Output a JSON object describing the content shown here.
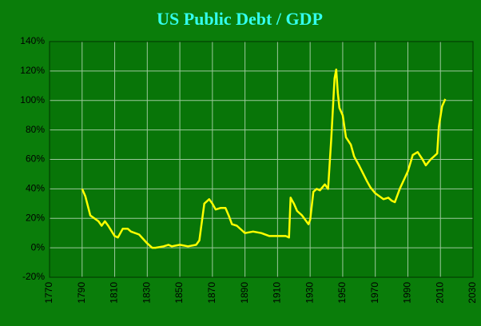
{
  "chart_data": {
    "type": "line",
    "title": "US Public Debt / GDP",
    "x": [
      1790,
      1792,
      1795,
      1800,
      1802,
      1804,
      1806,
      1810,
      1812,
      1815,
      1818,
      1820,
      1825,
      1830,
      1833,
      1835,
      1840,
      1843,
      1845,
      1850,
      1855,
      1860,
      1862,
      1865,
      1868,
      1870,
      1872,
      1875,
      1878,
      1880,
      1882,
      1885,
      1888,
      1890,
      1895,
      1900,
      1905,
      1910,
      1915,
      1917,
      1918,
      1919,
      1920,
      1922,
      1925,
      1929,
      1930,
      1932,
      1934,
      1936,
      1939,
      1941,
      1943,
      1945,
      1946,
      1947,
      1948,
      1950,
      1952,
      1955,
      1957,
      1960,
      1965,
      1967,
      1970,
      1975,
      1978,
      1980,
      1982,
      1985,
      1990,
      1993,
      1996,
      1999,
      2001,
      2004,
      2008,
      2009,
      2011,
      2013
    ],
    "series": [
      {
        "name": "Debt / GDP",
        "color": "#ffff00",
        "values": [
          40,
          35,
          22,
          18,
          15,
          18,
          15,
          8,
          7,
          13,
          13,
          11,
          9,
          3,
          0,
          0,
          1,
          2,
          1,
          2,
          1,
          2,
          5,
          30,
          33,
          30,
          26,
          27,
          27,
          22,
          16,
          15,
          12,
          10,
          11,
          10,
          8,
          8,
          8,
          7,
          34,
          32,
          30,
          25,
          22,
          16,
          19,
          38,
          40,
          39,
          43,
          40,
          75,
          115,
          121,
          105,
          95,
          90,
          75,
          70,
          62,
          56,
          45,
          41,
          37,
          33,
          34,
          32,
          31,
          40,
          52,
          63,
          65,
          60,
          56,
          60,
          64,
          82,
          96,
          101
        ]
      }
    ],
    "xlim": [
      1770,
      2030
    ],
    "xticks": [
      1770,
      1790,
      1810,
      1830,
      1850,
      1870,
      1890,
      1910,
      1930,
      1950,
      1970,
      1990,
      2010,
      2030
    ],
    "ylim": [
      -20,
      140
    ],
    "yticks": [
      {
        "value": -20,
        "label": "-20%"
      },
      {
        "value": 0,
        "label": "0%"
      },
      {
        "value": 20,
        "label": "20%"
      },
      {
        "value": 40,
        "label": "40%"
      },
      {
        "value": 60,
        "label": "60%"
      },
      {
        "value": 80,
        "label": "80%"
      },
      {
        "value": 100,
        "label": "100%"
      },
      {
        "value": 120,
        "label": "120%"
      },
      {
        "value": 140,
        "label": "140%"
      }
    ],
    "grid": true
  }
}
